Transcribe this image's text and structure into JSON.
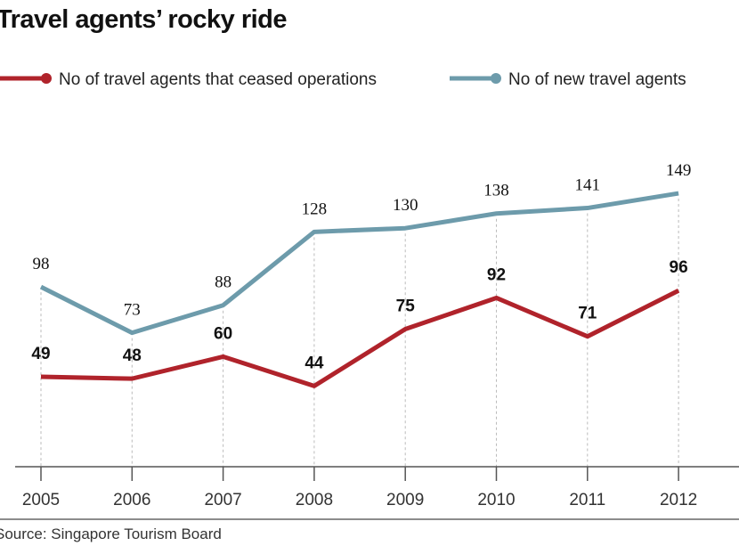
{
  "chart_data": {
    "type": "line",
    "title": "Travel agents’ rocky ride",
    "categories": [
      "2005",
      "2006",
      "2007",
      "2008",
      "2009",
      "2010",
      "2011",
      "2012"
    ],
    "series": [
      {
        "name": "No of travel agents that ceased operations",
        "color": "#b0232b",
        "values": [
          49,
          48,
          60,
          44,
          75,
          92,
          71,
          96
        ]
      },
      {
        "name": "No of new travel agents",
        "color": "#6d9bab",
        "values": [
          98,
          73,
          88,
          128,
          130,
          138,
          141,
          149
        ]
      }
    ],
    "xlabel": "",
    "ylabel": "",
    "ylim": [
      0,
      160
    ],
    "grid": "vertical dotted lines at each year",
    "legend": "top",
    "source": "Source: Singapore Tourism Board"
  }
}
